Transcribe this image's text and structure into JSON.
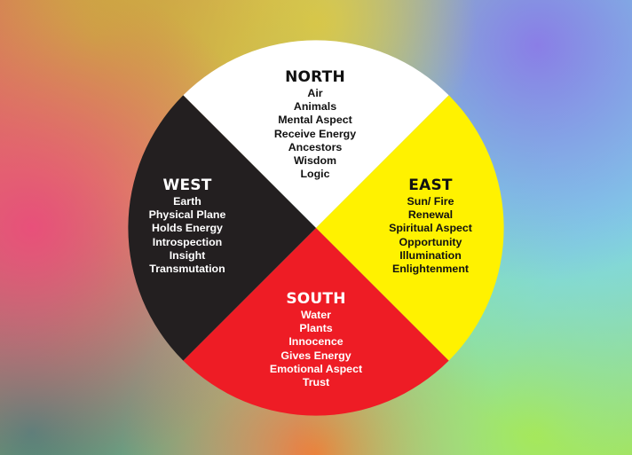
{
  "wheel": {
    "colors": {
      "north": "#ffffff",
      "east": "#fff200",
      "south": "#ee1c25",
      "west": "#231f20"
    },
    "quadrants": {
      "north": {
        "title": "NORTH",
        "items": [
          "Air",
          "Animals",
          "Mental Aspect",
          "Receive Energy",
          "Ancestors",
          "Wisdom",
          "Logic"
        ]
      },
      "east": {
        "title": "EAST",
        "items": [
          "Sun/ Fire",
          "Renewal",
          "Spiritual Aspect",
          "Opportunity",
          "Illumination",
          "Enlightenment"
        ]
      },
      "south": {
        "title": "SOUTH",
        "items": [
          "Water",
          "Plants",
          "Innocence",
          "Gives Energy",
          "Emotional Aspect",
          "Trust"
        ]
      },
      "west": {
        "title": "WEST",
        "items": [
          "Earth",
          "Physical Plane",
          "Holds Energy",
          "Introspection",
          "Insight",
          "Transmutation"
        ]
      }
    }
  }
}
